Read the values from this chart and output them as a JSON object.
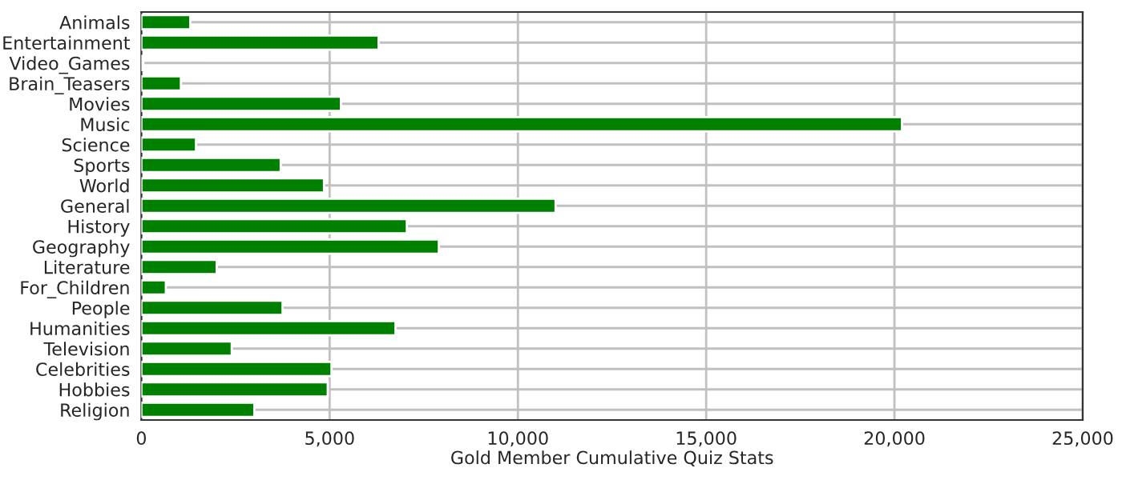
{
  "chart_data": {
    "type": "bar",
    "orientation": "horizontal",
    "xlabel": "Gold Member Cumulative Quiz Stats",
    "categories": [
      "Animals",
      "Entertainment",
      "Video_Games",
      "Brain_Teasers",
      "Movies",
      "Music",
      "Science",
      "Sports",
      "World",
      "General",
      "History",
      "Geography",
      "Literature",
      "For_Children",
      "People",
      "Humanities",
      "Television",
      "Celebrities",
      "Hobbies",
      "Religion"
    ],
    "values": [
      1300,
      6300,
      50,
      1050,
      5300,
      20200,
      1450,
      3700,
      4850,
      11000,
      7050,
      7900,
      2000,
      650,
      3750,
      6750,
      2400,
      5050,
      4950,
      3000
    ],
    "color": "#008000",
    "xlim": [
      0,
      25000
    ],
    "xticks": [
      {
        "value": 0,
        "label": "0"
      },
      {
        "value": 5000,
        "label": "5,000"
      },
      {
        "value": 10000,
        "label": "10,000"
      },
      {
        "value": 15000,
        "label": "15,000"
      },
      {
        "value": 20000,
        "label": "20,000"
      },
      {
        "value": 25000,
        "label": "25,000"
      }
    ],
    "grid": true
  }
}
